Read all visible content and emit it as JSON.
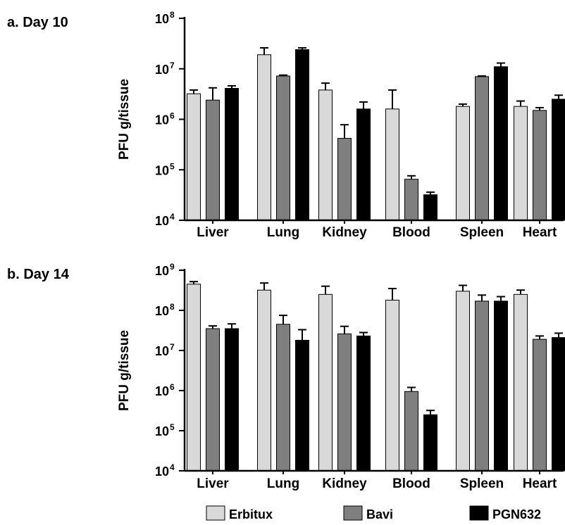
{
  "chart_data": [
    {
      "type": "bar",
      "panel_label": "a. Day 10",
      "ylabel": "PFU g/tissue",
      "yscale": "log",
      "ylim": [
        10000,
        100000000
      ],
      "yticks": [
        {
          "base": "10",
          "exp": "4"
        },
        {
          "base": "10",
          "exp": "5"
        },
        {
          "base": "10",
          "exp": "6"
        },
        {
          "base": "10",
          "exp": "7"
        },
        {
          "base": "10",
          "exp": "8"
        }
      ],
      "categories": [
        "Liver",
        "Lung",
        "Kidney",
        "Blood",
        "Spleen",
        "Heart"
      ],
      "series": [
        {
          "name": "Erbitux",
          "values": [
            3200000,
            19000000,
            3800000,
            1600000,
            1800000,
            1800000
          ],
          "err_upper": [
            3800000,
            26000000,
            5200000,
            3800000,
            2000000,
            2300000
          ]
        },
        {
          "name": "Bavi",
          "values": [
            2400000,
            7200000,
            420000,
            65000,
            7000000,
            1500000
          ],
          "err_upper": [
            4200000,
            7500000,
            780000,
            76000,
            7200000,
            1700000
          ]
        },
        {
          "name": "PGN632",
          "values": [
            4100000,
            24000000,
            1600000,
            32000,
            11000000,
            2500000
          ],
          "err_upper": [
            4600000,
            26000000,
            2200000,
            36000,
            13000000,
            3000000
          ]
        }
      ]
    },
    {
      "type": "bar",
      "panel_label": "b. Day 14",
      "ylabel": "PFU g/tissue",
      "yscale": "log",
      "ylim": [
        10000,
        1000000000
      ],
      "yticks": [
        {
          "base": "10",
          "exp": "4"
        },
        {
          "base": "10",
          "exp": "5"
        },
        {
          "base": "10",
          "exp": "6"
        },
        {
          "base": "10",
          "exp": "7"
        },
        {
          "base": "10",
          "exp": "8"
        },
        {
          "base": "10",
          "exp": "9"
        }
      ],
      "categories": [
        "Liver",
        "Lung",
        "Kidney",
        "Blood",
        "Spleen",
        "Heart"
      ],
      "series": [
        {
          "name": "Erbitux",
          "values": [
            450000000,
            320000000,
            250000000,
            180000000,
            300000000,
            250000000
          ],
          "err_upper": [
            520000000,
            480000000,
            400000000,
            350000000,
            420000000,
            320000000
          ]
        },
        {
          "name": "Bavi",
          "values": [
            35000000,
            45000000,
            26000000,
            950000,
            170000000,
            19000000
          ],
          "err_upper": [
            41000000,
            75000000,
            40000000,
            1200000,
            240000000,
            23000000
          ]
        },
        {
          "name": "PGN632",
          "values": [
            35000000,
            18000000,
            23000000,
            250000,
            170000000,
            21000000
          ],
          "err_upper": [
            46000000,
            33000000,
            28000000,
            320000,
            220000000,
            27000000
          ]
        }
      ]
    }
  ],
  "legend": {
    "placement": "bottom",
    "items": [
      {
        "label": "Erbitux",
        "color": "#d9d9d9"
      },
      {
        "label": "Bavi",
        "color": "#7f7f7f"
      },
      {
        "label": "PGN632",
        "color": "#000000"
      }
    ]
  },
  "colors": {
    "Erbitux": "#d9d9d9",
    "Bavi": "#7f7f7f",
    "PGN632": "#000000"
  }
}
